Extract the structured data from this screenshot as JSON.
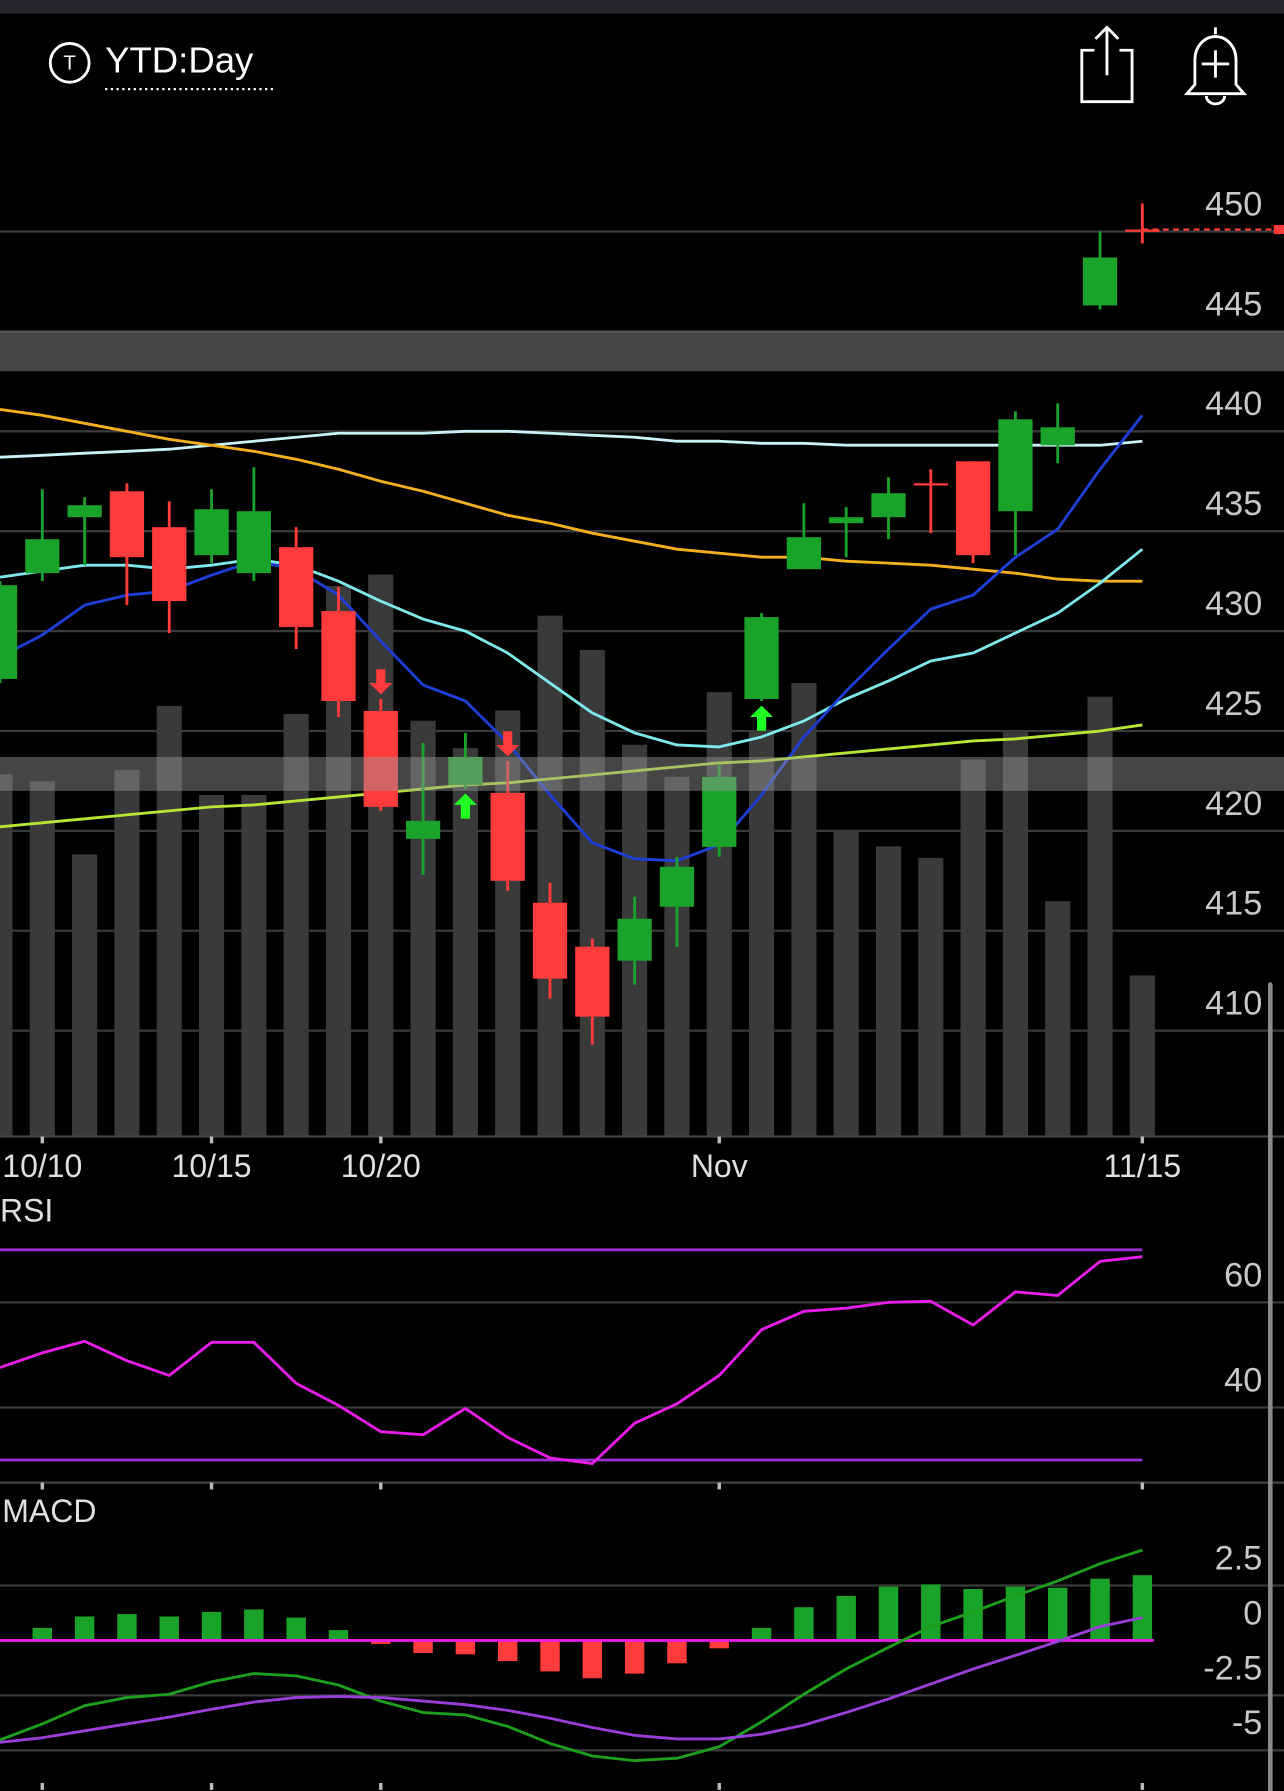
{
  "header": {
    "icon_letter": "T",
    "title": "YTD:Day"
  },
  "chart_data": [
    {
      "type": "candlestick",
      "categories": [
        null,
        "10/10",
        null,
        null,
        null,
        "10/15",
        null,
        null,
        null,
        "10/20",
        null,
        null,
        null,
        null,
        null,
        null,
        null,
        "Nov",
        null,
        null,
        null,
        null,
        null,
        null,
        null,
        null,
        null,
        "11/15"
      ],
      "open": [
        427.6,
        432.9,
        435.7,
        437.0,
        435.2,
        433.8,
        432.9,
        434.2,
        431.0,
        426.0,
        419.6,
        422.3,
        421.9,
        416.4,
        414.2,
        413.5,
        416.2,
        419.2,
        426.6,
        433.1,
        435.4,
        435.7,
        437.4,
        438.5,
        436.0,
        439.3,
        446.3,
        450.1
      ],
      "high": [
        432.5,
        437.1,
        436.7,
        437.4,
        436.5,
        437.1,
        438.2,
        435.2,
        432.2,
        426.6,
        424.4,
        424.9,
        423.5,
        417.4,
        414.6,
        416.7,
        418.7,
        423.3,
        430.9,
        436.4,
        436.2,
        437.7,
        438.1,
        438.5,
        441.0,
        441.4,
        450.0,
        451.4
      ],
      "low": [
        427.4,
        432.5,
        433.3,
        431.3,
        429.9,
        433.4,
        432.5,
        429.1,
        425.7,
        421.0,
        417.8,
        422.1,
        417.0,
        411.6,
        409.3,
        412.3,
        414.2,
        418.7,
        426.5,
        433.1,
        433.7,
        434.6,
        434.9,
        433.4,
        433.8,
        438.4,
        446.1,
        449.4
      ],
      "close": [
        432.3,
        434.6,
        436.3,
        433.7,
        431.5,
        436.1,
        436.0,
        430.2,
        426.5,
        421.2,
        420.5,
        423.7,
        417.5,
        412.6,
        410.7,
        415.6,
        418.2,
        422.7,
        430.7,
        434.7,
        435.7,
        436.9,
        437.3,
        433.8,
        440.6,
        440.2,
        448.7,
        450.1
      ],
      "up_color": "#1aa32a",
      "down_color": "#ff3b3b",
      "volume": [
        317,
        311,
        247,
        321,
        377,
        299,
        299,
        370,
        482,
        492,
        364,
        340,
        373,
        456,
        426,
        343,
        315,
        389,
        355,
        397,
        268,
        254,
        244,
        330,
        354,
        206,
        385,
        141
      ],
      "volume_color": "#3a3a3a",
      "y2lim": [
        0,
        885
      ],
      "series": [
        {
          "color": "#c8f2f8",
          "values": [
            438.7,
            438.8,
            438.9,
            439.0,
            439.1,
            439.3,
            439.5,
            439.7,
            439.9,
            439.9,
            439.9,
            440.0,
            440.0,
            439.9,
            439.8,
            439.7,
            439.5,
            439.5,
            439.4,
            439.4,
            439.3,
            439.3,
            439.3,
            439.3,
            439.3,
            439.3,
            439.3,
            439.5
          ]
        },
        {
          "color": "#f2b01e",
          "values": [
            441.1,
            440.8,
            440.4,
            440.0,
            439.6,
            439.3,
            439.0,
            438.6,
            438.1,
            437.5,
            437.0,
            436.4,
            435.8,
            435.4,
            434.9,
            434.5,
            434.1,
            433.9,
            433.7,
            433.7,
            433.5,
            433.4,
            433.3,
            433.1,
            432.9,
            432.6,
            432.5,
            432.5
          ]
        },
        {
          "color": "#7ee8ea",
          "values": [
            432.7,
            433.0,
            433.3,
            433.3,
            433.1,
            433.3,
            433.6,
            433.3,
            432.5,
            431.5,
            430.6,
            430.0,
            428.9,
            427.4,
            425.9,
            424.9,
            424.3,
            424.2,
            424.7,
            425.5,
            426.6,
            427.5,
            428.5,
            428.9,
            429.9,
            430.9,
            432.4,
            434.1
          ]
        },
        {
          "color": "#1e3fd6",
          "values": [
            428.7,
            429.8,
            431.3,
            431.8,
            432.0,
            432.8,
            433.5,
            433.1,
            431.8,
            429.5,
            427.3,
            426.5,
            424.4,
            421.8,
            419.4,
            418.6,
            418.5,
            419.3,
            421.8,
            424.7,
            427.0,
            429.1,
            431.1,
            431.8,
            433.7,
            435.1,
            438.1,
            440.8
          ]
        },
        {
          "color": "#b6e636",
          "values": [
            420.2,
            420.4,
            420.6,
            420.8,
            421.0,
            421.2,
            421.3,
            421.5,
            421.7,
            421.9,
            422.1,
            422.3,
            422.4,
            422.6,
            422.8,
            423.0,
            423.2,
            423.4,
            423.5,
            423.7,
            423.9,
            424.1,
            424.3,
            424.5,
            424.6,
            424.8,
            425.0,
            425.3
          ]
        }
      ],
      "bands": [
        [
          443.0,
          445.0
        ],
        [
          422.0,
          423.7
        ]
      ],
      "band_color": "#9a9a9a",
      "buy_signals": [
        11,
        18
      ],
      "sell_signals": [
        9,
        12
      ],
      "ylim": [
        404.7,
        455.3
      ],
      "yticks": [
        450,
        445,
        440,
        435,
        430,
        425,
        420,
        415,
        410
      ],
      "grid": true
    },
    {
      "type": "line",
      "title": "RSI",
      "values": [
        47.6,
        50.4,
        52.6,
        48.9,
        46.1,
        52.4,
        52.4,
        44.6,
        40.4,
        35.4,
        34.8,
        39.8,
        34.3,
        30.4,
        29.3,
        37.0,
        40.7,
        46.1,
        54.8,
        58.3,
        58.9,
        60.0,
        60.2,
        55.7,
        62.0,
        61.3,
        67.8,
        68.7
      ],
      "color": "#e81ee8",
      "levels": [
        70,
        30
      ],
      "level_color": "#9b30d0",
      "ylim": [
        25.7,
        80.7
      ],
      "yticks": [
        60,
        40
      ],
      "grid": true
    },
    {
      "type": "macd",
      "title": "MACD",
      "histogram": [
        null,
        0.57,
        1.09,
        1.2,
        1.09,
        1.3,
        1.41,
        1.04,
        0.47,
        -0.16,
        -0.57,
        -0.63,
        -0.94,
        -1.41,
        -1.72,
        -1.51,
        -1.04,
        -0.36,
        0.57,
        1.51,
        2.03,
        2.45,
        2.55,
        2.34,
        2.45,
        2.4,
        2.81,
        2.97
      ],
      "macd": [
        -4.53,
        -3.8,
        -2.97,
        -2.6,
        -2.45,
        -1.88,
        -1.51,
        -1.61,
        -2.03,
        -2.76,
        -3.28,
        -3.39,
        -3.91,
        -4.69,
        -5.26,
        -5.47,
        -5.36,
        -4.84,
        -3.7,
        -2.45,
        -1.3,
        -0.31,
        0.63,
        1.3,
        2.03,
        2.71,
        3.49,
        4.11
      ],
      "signal": [
        -4.64,
        -4.43,
        -4.11,
        -3.8,
        -3.49,
        -3.13,
        -2.81,
        -2.6,
        -2.55,
        -2.6,
        -2.76,
        -2.92,
        -3.18,
        -3.54,
        -3.96,
        -4.32,
        -4.48,
        -4.48,
        -4.27,
        -3.85,
        -3.28,
        -2.66,
        -1.98,
        -1.3,
        -0.68,
        -0.05,
        0.63,
        1.04
      ],
      "up_color": "#1aa32a",
      "down_color": "#ff3b3b",
      "macd_color": "#1d9e1d",
      "signal_color": "#9a3ed8",
      "zero_color": "#e81ee8",
      "ylim": [
        -6.8,
        5.0
      ],
      "yticks": [
        2.5,
        0,
        -2.5,
        -5
      ],
      "grid": true
    }
  ]
}
